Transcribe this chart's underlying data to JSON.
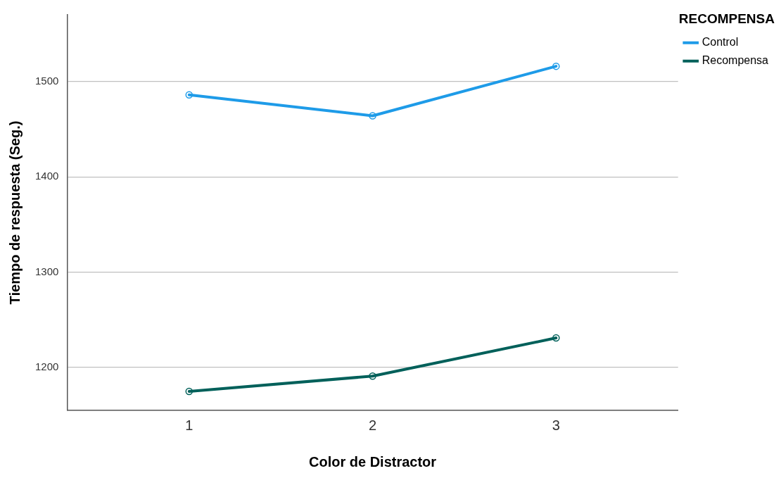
{
  "chart_data": {
    "type": "line",
    "xlabel": "Color de Distractor",
    "ylabel": "Tiempo de respuesta (Seg.)",
    "legend_title": "RECOMPENSA",
    "x": [
      1,
      2,
      3
    ],
    "xlim": [
      0.335,
      3.665
    ],
    "xticks": [
      1,
      2,
      3
    ],
    "ylim": [
      1155,
      1570
    ],
    "yticks": [
      1200,
      1300,
      1400,
      1500
    ],
    "series": [
      {
        "name": "Control",
        "color": "#1e9be8",
        "values": [
          1486,
          1464,
          1516
        ]
      },
      {
        "name": "Recompensa",
        "color": "#00605a",
        "values": [
          1175,
          1191,
          1231
        ]
      }
    ],
    "grid": "y",
    "legend": "top right",
    "marker": "circle",
    "line_style": "solid"
  }
}
